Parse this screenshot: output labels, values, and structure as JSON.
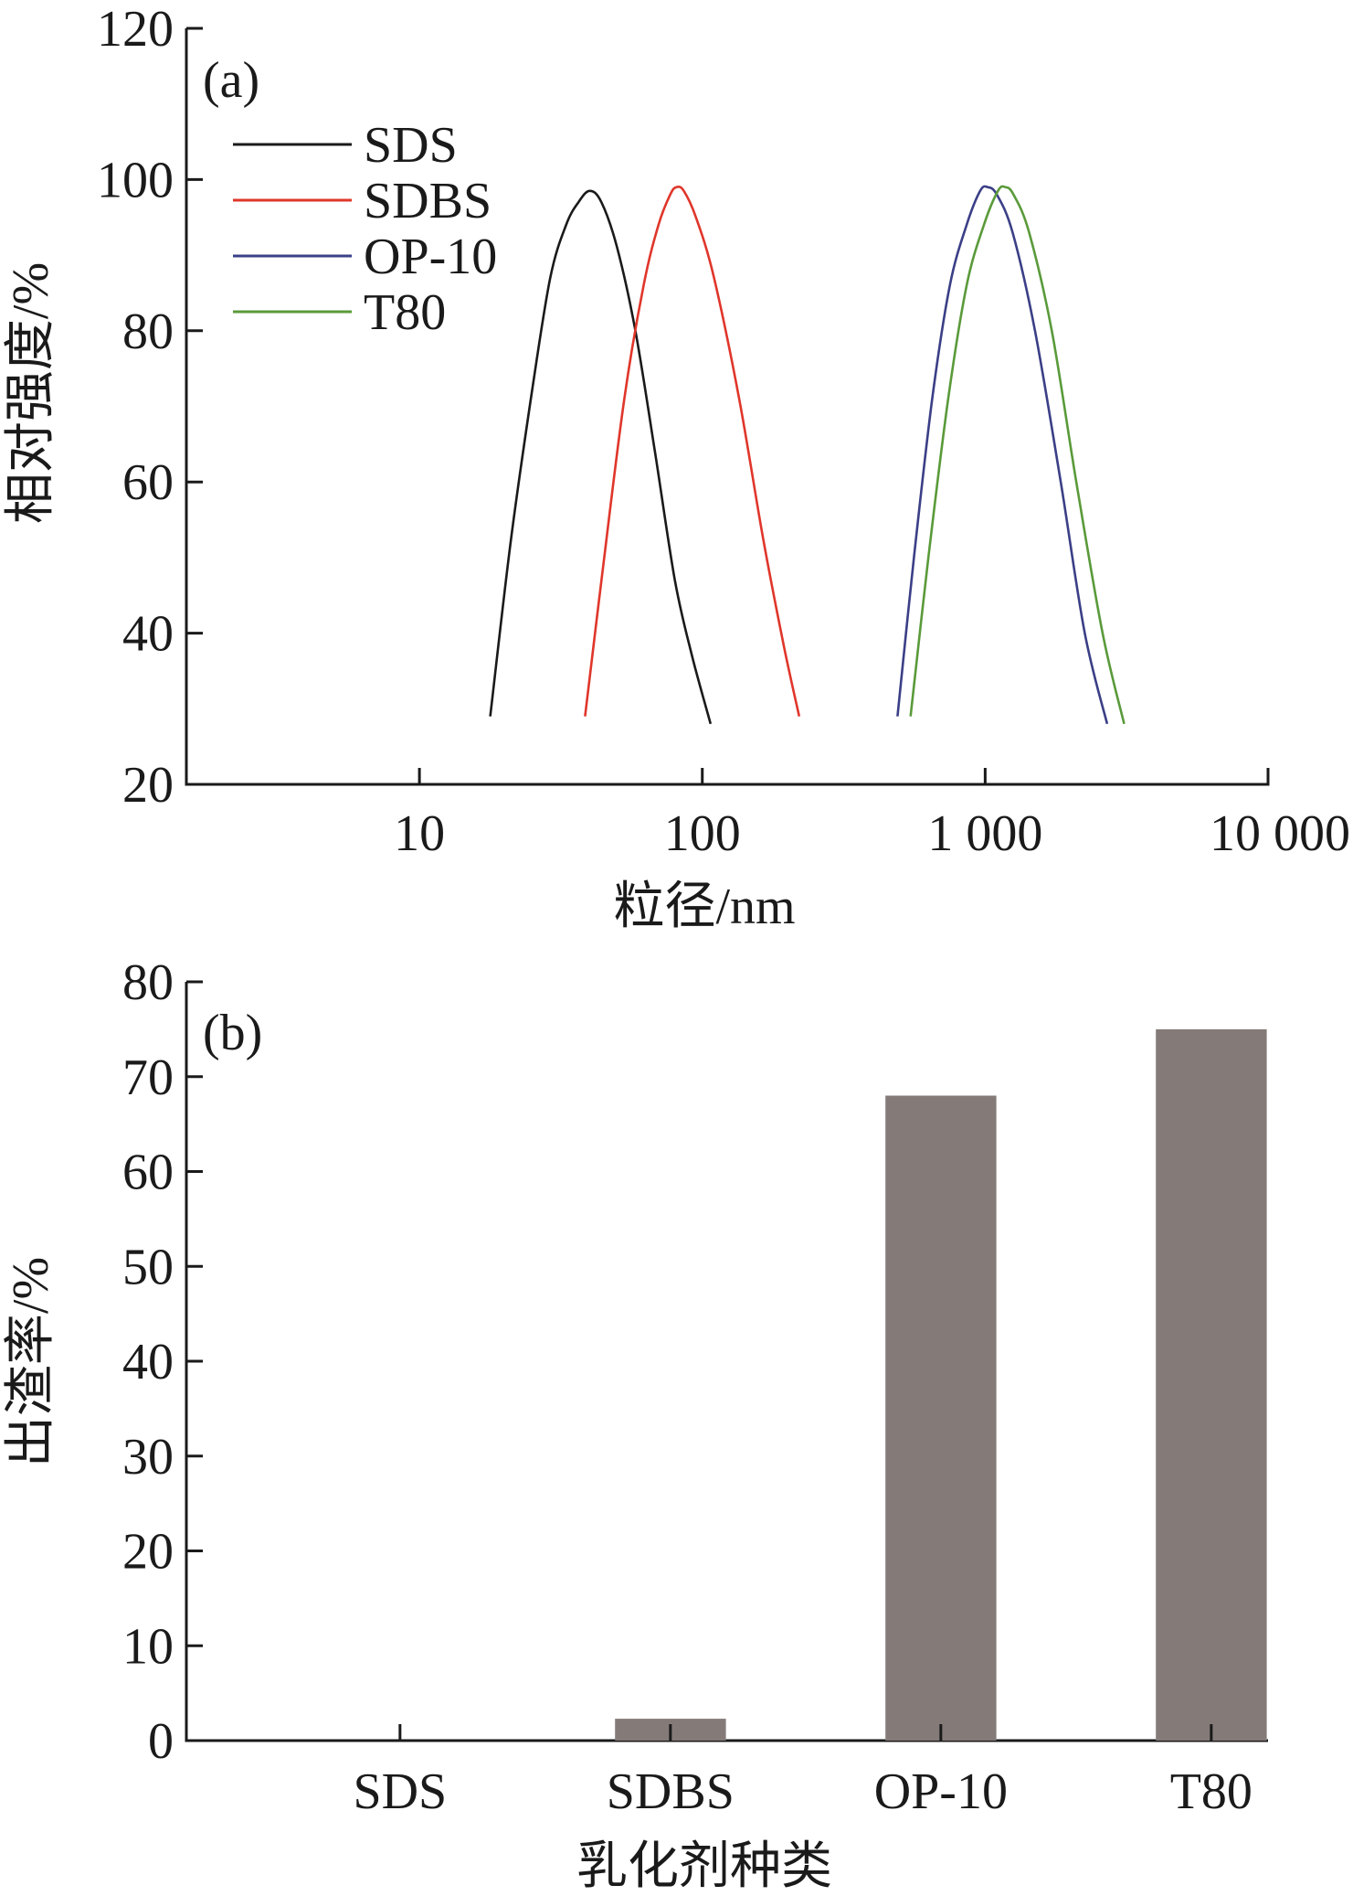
{
  "chart_data": [
    {
      "panel": "(a)",
      "type": "line",
      "xlabel": "粒径/nm",
      "ylabel": "相对强度/%",
      "xscale": "log",
      "xlim": [
        1.5,
        10000
      ],
      "ylim": [
        20,
        120
      ],
      "xticks": [
        10,
        100,
        1000,
        10000
      ],
      "xtick_labels": [
        "10",
        "100",
        "1 000",
        "10 000"
      ],
      "yticks": [
        20,
        40,
        60,
        80,
        100,
        120
      ],
      "ytick_labels": [
        "20",
        "40",
        "60",
        "80",
        "100",
        "120"
      ],
      "grid": false,
      "legend_position": "top-left",
      "series": [
        {
          "name": "SDS",
          "color": "#1a1a1a",
          "x": [
            17.8,
            21,
            25,
            29,
            33,
            36.5,
            40,
            44,
            50,
            58,
            68,
            80,
            92,
            107
          ],
          "y": [
            29,
            52,
            72,
            87,
            94,
            97,
            98.5,
            97,
            91,
            80,
            64,
            47,
            37,
            28
          ]
        },
        {
          "name": "SDBS",
          "color": "#e0362b",
          "x": [
            38.5,
            45,
            53,
            62,
            70,
            77,
            81,
            86,
            95,
            110,
            135,
            165,
            195,
            220
          ],
          "y": [
            29,
            50,
            71,
            86,
            94,
            98,
            99,
            98.5,
            95,
            87,
            71,
            52,
            38,
            29
          ]
        },
        {
          "name": "OP-10",
          "color": "#3b3f86",
          "x": [
            490,
            560,
            650,
            750,
            860,
            960,
            1020,
            1100,
            1250,
            1500,
            1850,
            2250,
            2700
          ],
          "y": [
            29,
            50,
            71,
            86,
            94,
            98.5,
            99,
            98,
            93,
            80,
            60,
            40,
            28
          ]
        },
        {
          "name": "T80",
          "color": "#5a9a3a",
          "x": [
            545,
            630,
            740,
            860,
            990,
            1110,
            1180,
            1260,
            1430,
            1720,
            2100,
            2600,
            3100
          ],
          "y": [
            29,
            50,
            71,
            86,
            94,
            98.5,
            99,
            98,
            93,
            80,
            60,
            40,
            28
          ]
        }
      ]
    },
    {
      "panel": "(b)",
      "type": "bar",
      "xlabel": "乳化剂种类",
      "ylabel": "出渣率/%",
      "categories": [
        "SDS",
        "SDBS",
        "OP-10",
        "T80"
      ],
      "values": [
        0,
        2.3,
        68,
        75
      ],
      "ylim": [
        0,
        80
      ],
      "yticks": [
        0,
        10,
        20,
        30,
        40,
        50,
        60,
        70,
        80
      ],
      "ytick_labels": [
        "0",
        "10",
        "20",
        "30",
        "40",
        "50",
        "60",
        "70",
        "80"
      ],
      "bar_color": "#847b79",
      "grid": false
    }
  ]
}
